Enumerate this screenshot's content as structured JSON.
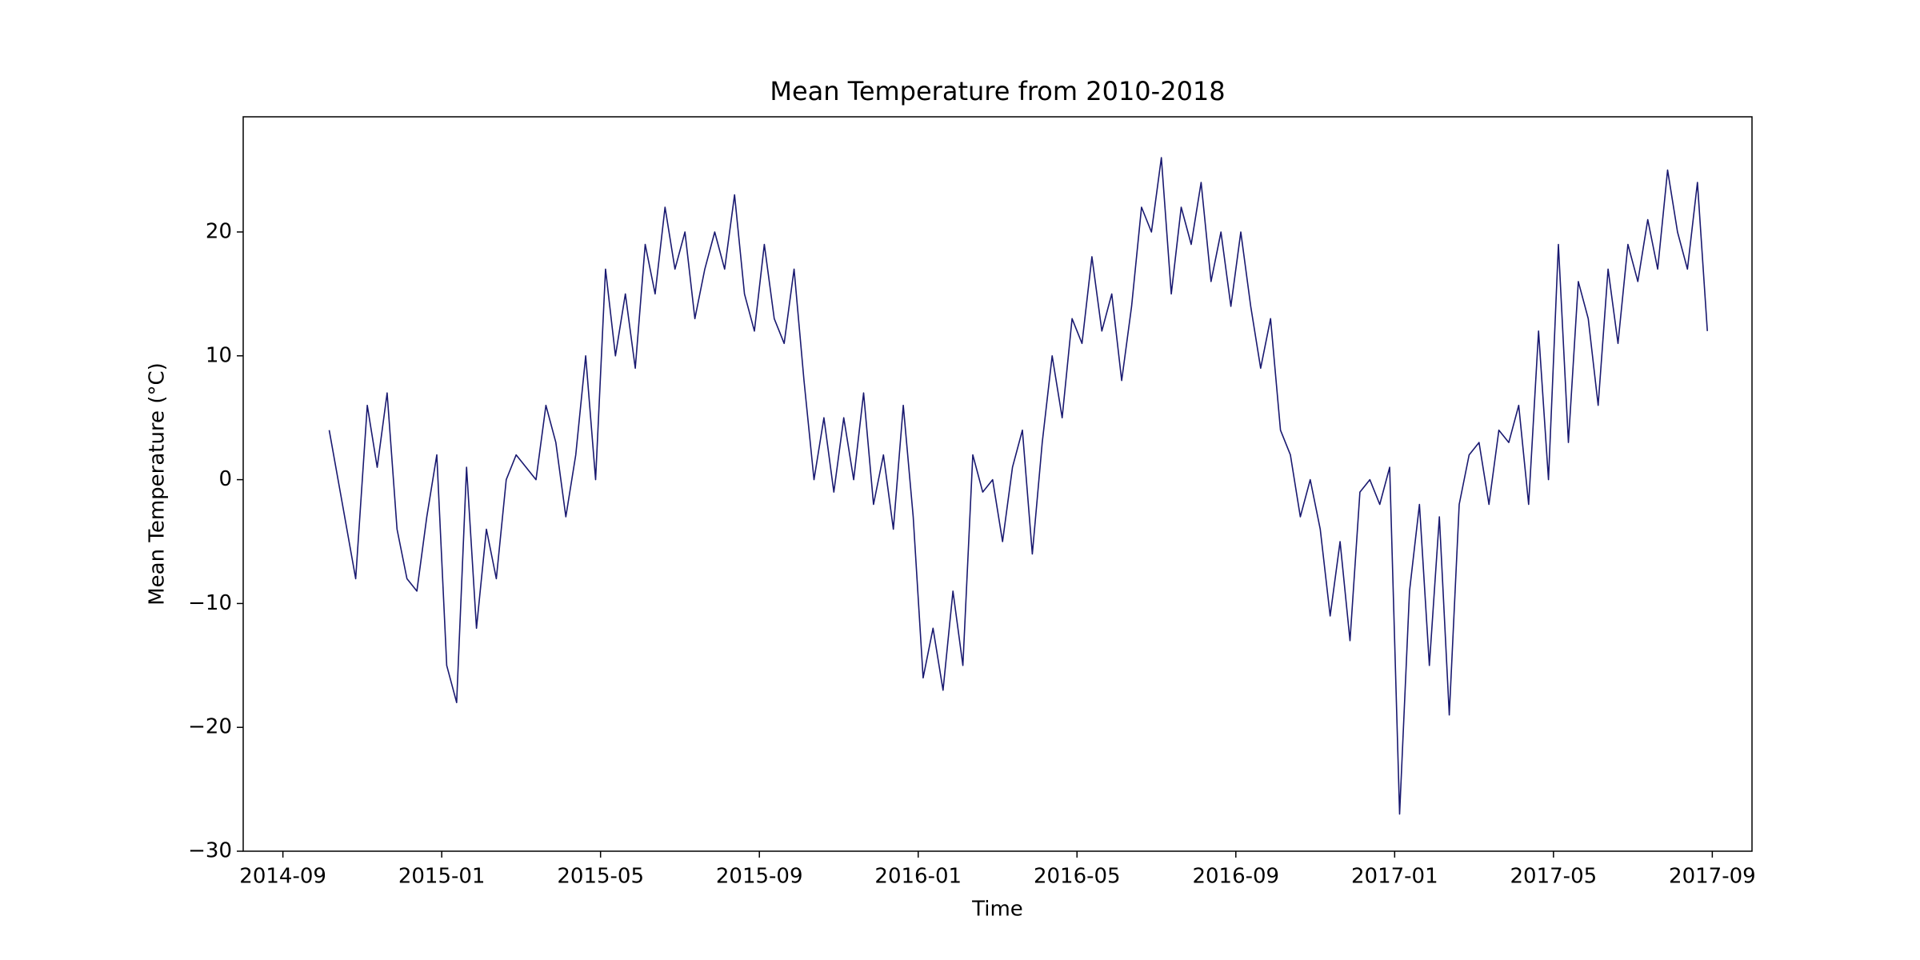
{
  "chart_data": {
    "type": "line",
    "title": "Mean Temperature from 2010-2018",
    "x_label": "Time",
    "y_label": "Mean Temperature (°C)",
    "color": "#191970",
    "grid": false,
    "xlim": [
      "2014-08",
      "2017-10"
    ],
    "xticks": [
      "2014-09",
      "2015-01",
      "2015-05",
      "2015-09",
      "2016-01",
      "2016-05",
      "2016-09",
      "2017-01",
      "2017-05",
      "2017-09"
    ],
    "ylim": [
      -30,
      29.3
    ],
    "yticks": [
      {
        "value": -30,
        "label": "−30"
      },
      {
        "value": -20,
        "label": "−20"
      },
      {
        "value": -10,
        "label": "−10"
      },
      0,
      10,
      20
    ],
    "x": [
      "2014-10",
      "2014-10",
      "2014-10",
      "2014-11",
      "2014-11",
      "2014-11",
      "2014-11",
      "2014-12",
      "2014-12",
      "2014-12",
      "2014-12",
      "2015-01",
      "2015-01",
      "2015-01",
      "2015-01",
      "2015-02",
      "2015-02",
      "2015-02",
      "2015-02",
      "2015-03",
      "2015-03",
      "2015-03",
      "2015-03",
      "2015-04",
      "2015-04",
      "2015-04",
      "2015-04",
      "2015-05",
      "2015-05",
      "2015-05",
      "2015-05",
      "2015-06",
      "2015-06",
      "2015-06",
      "2015-06",
      "2015-07",
      "2015-07",
      "2015-07",
      "2015-07",
      "2015-08",
      "2015-08",
      "2015-08",
      "2015-08",
      "2015-09",
      "2015-09",
      "2015-09",
      "2015-09",
      "2015-10",
      "2015-10",
      "2015-10",
      "2015-10",
      "2015-11",
      "2015-11",
      "2015-11",
      "2015-11",
      "2015-12",
      "2015-12",
      "2015-12",
      "2015-12",
      "2016-01",
      "2016-01",
      "2016-01",
      "2016-01",
      "2016-02",
      "2016-02",
      "2016-02",
      "2016-02",
      "2016-03",
      "2016-03",
      "2016-03",
      "2016-03",
      "2016-04",
      "2016-04",
      "2016-04",
      "2016-04",
      "2016-05",
      "2016-05",
      "2016-05",
      "2016-05",
      "2016-06",
      "2016-06",
      "2016-06",
      "2016-06",
      "2016-07",
      "2016-07",
      "2016-07",
      "2016-07",
      "2016-08",
      "2016-08",
      "2016-08",
      "2016-08",
      "2016-09",
      "2016-09",
      "2016-09",
      "2016-09",
      "2016-10",
      "2016-10",
      "2016-10",
      "2016-10",
      "2016-11",
      "2016-11",
      "2016-11",
      "2016-11",
      "2016-12",
      "2016-12",
      "2016-12",
      "2016-12",
      "2017-01",
      "2017-01",
      "2017-01",
      "2017-01",
      "2017-02",
      "2017-02",
      "2017-02",
      "2017-02",
      "2017-03",
      "2017-03",
      "2017-03",
      "2017-03",
      "2017-04",
      "2017-04",
      "2017-04",
      "2017-04",
      "2017-05",
      "2017-05",
      "2017-05",
      "2017-05",
      "2017-06",
      "2017-06",
      "2017-06",
      "2017-06",
      "2017-07",
      "2017-07",
      "2017-07",
      "2017-07",
      "2017-08",
      "2017-08",
      "2017-08",
      "2017-08"
    ],
    "values": [
      4,
      -2,
      -8,
      6,
      1,
      7,
      -4,
      -8,
      -9,
      -3,
      2,
      -15,
      -18,
      1,
      -12,
      -4,
      -8,
      0,
      2,
      1,
      0,
      6,
      3,
      -3,
      2,
      10,
      0,
      17,
      10,
      15,
      9,
      19,
      15,
      22,
      17,
      20,
      13,
      17,
      20,
      17,
      23,
      15,
      12,
      19,
      13,
      11,
      17,
      8,
      0,
      5,
      -1,
      5,
      0,
      7,
      -2,
      2,
      -4,
      6,
      -3,
      -16,
      -12,
      -17,
      -9,
      -15,
      2,
      -1,
      0,
      -5,
      1,
      4,
      -6,
      3,
      10,
      5,
      13,
      11,
      18,
      12,
      15,
      8,
      14,
      22,
      20,
      26,
      15,
      22,
      19,
      24,
      16,
      20,
      14,
      20,
      14,
      9,
      13,
      4,
      2,
      -3,
      0,
      -4,
      -11,
      -5,
      -13,
      -1,
      0,
      -2,
      1,
      -27,
      -9,
      -2,
      -15,
      -3,
      -19,
      -2,
      2,
      3,
      -2,
      4,
      3,
      6,
      -2,
      12,
      0,
      19,
      3,
      16,
      13,
      6,
      17,
      11,
      19,
      16,
      21,
      17,
      25,
      20,
      17,
      24,
      12
    ]
  }
}
